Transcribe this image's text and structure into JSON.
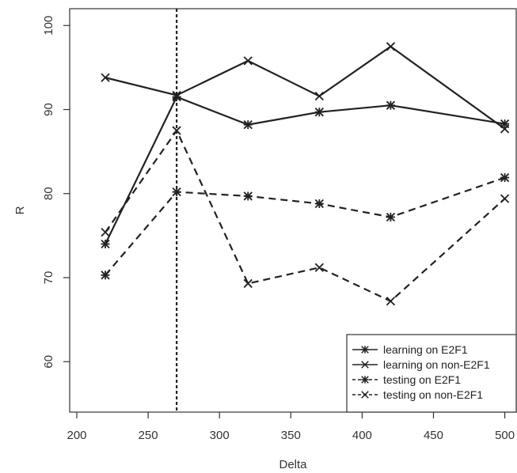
{
  "chart_data": {
    "type": "line",
    "xlabel": "Delta",
    "ylabel": "R",
    "xlim": [
      195,
      508
    ],
    "ylim": [
      54,
      102
    ],
    "xticks": [
      200,
      250,
      300,
      350,
      400,
      450,
      500
    ],
    "yticks": [
      60,
      70,
      80,
      90,
      100
    ],
    "vline": 270,
    "legend_position": "bottom-right",
    "x": [
      220,
      270,
      320,
      370,
      420,
      500
    ],
    "series": [
      {
        "name": "learning on E2F1",
        "style": "solid",
        "marker": "star",
        "values": [
          74.0,
          91.5,
          88.2,
          89.7,
          90.5,
          88.3
        ]
      },
      {
        "name": "learning on non-E2F1",
        "style": "solid",
        "marker": "x",
        "values": [
          93.8,
          91.7,
          95.8,
          91.6,
          97.5,
          87.7
        ]
      },
      {
        "name": "testing on E2F1",
        "style": "dashed",
        "marker": "star",
        "values": [
          70.3,
          80.2,
          79.7,
          78.8,
          77.2,
          81.9
        ]
      },
      {
        "name": "testing on non-E2F1",
        "style": "dashed",
        "marker": "x",
        "values": [
          75.4,
          87.5,
          69.3,
          71.2,
          67.2,
          79.4
        ]
      }
    ]
  }
}
